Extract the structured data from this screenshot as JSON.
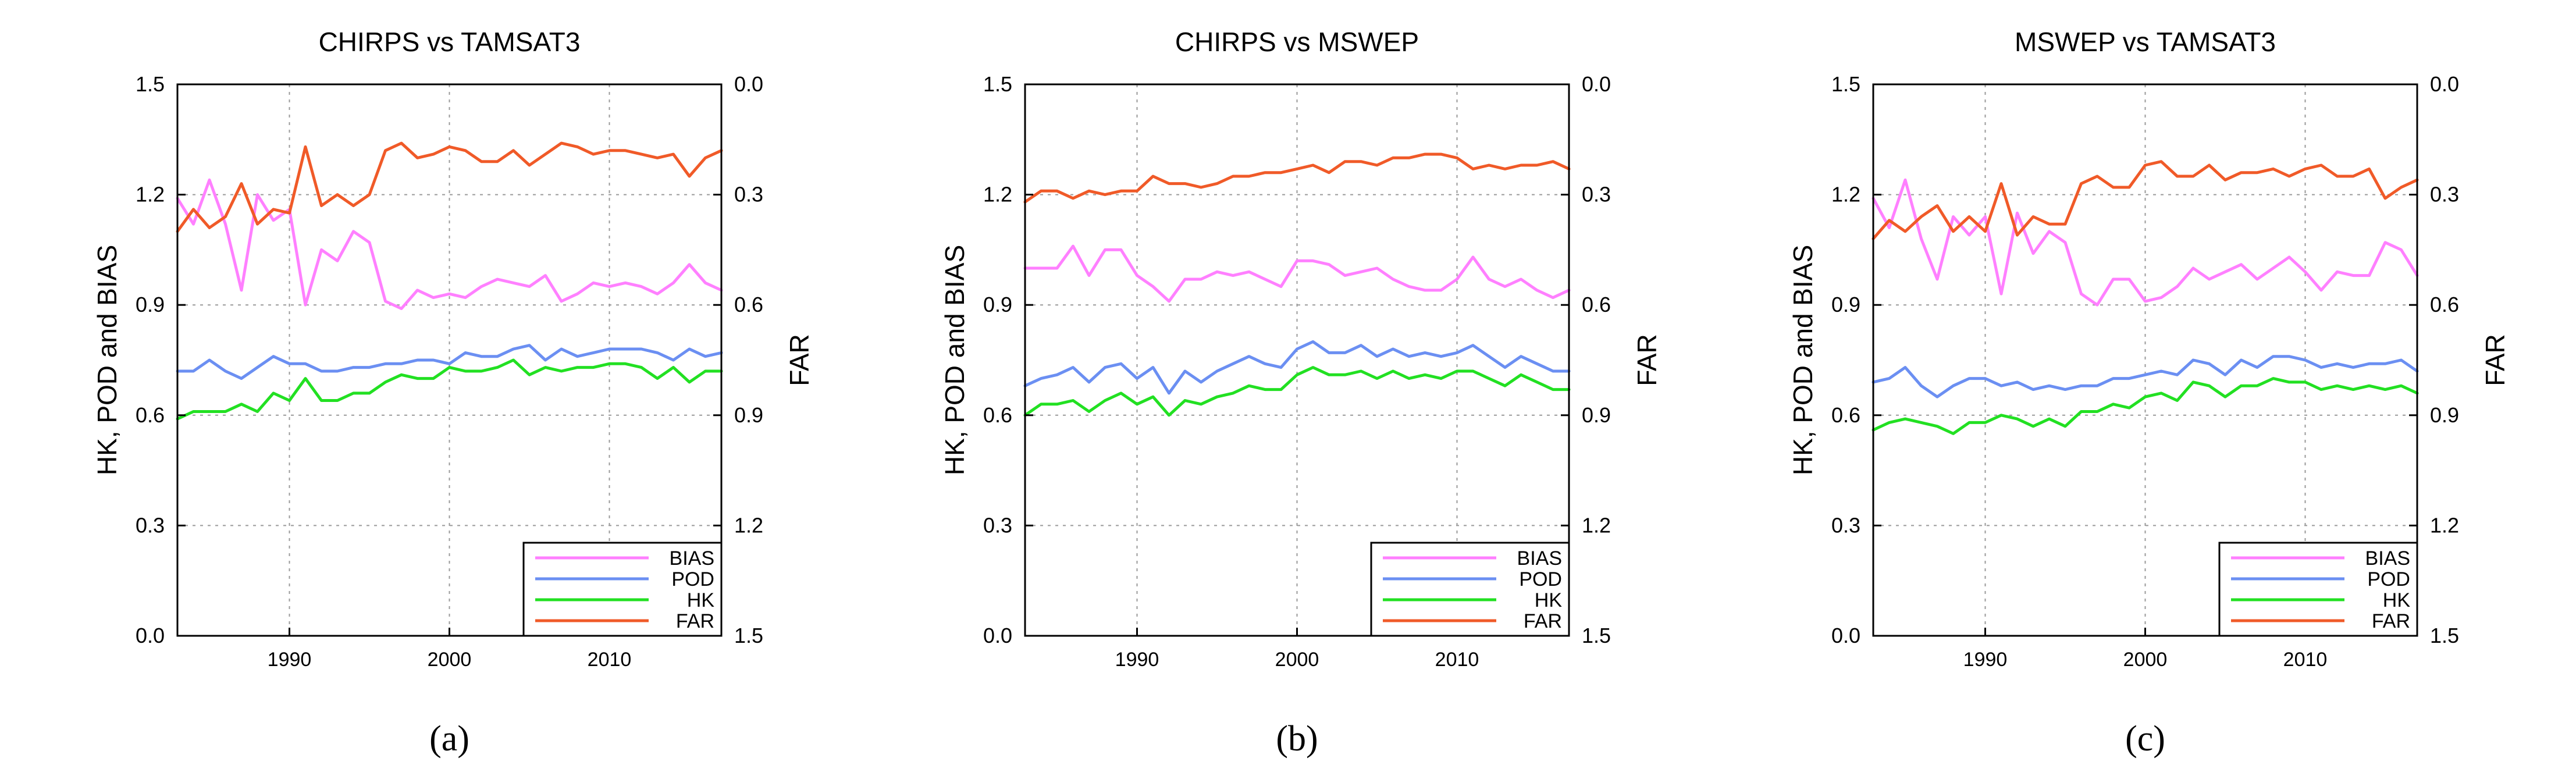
{
  "figure": {
    "panel_labels": [
      "(a)",
      "(b)",
      "(c)"
    ]
  },
  "colors": {
    "BIAS": "#ff80ff",
    "POD": "#6b8ff2",
    "HK": "#22e022",
    "FAR": "#f05a28",
    "grid": "#9a9a9a",
    "axis": "#000000"
  },
  "chart_data": [
    {
      "type": "line",
      "title": "CHIRPS vs TAMSAT3",
      "panel_label": "(a)",
      "ylabel_left": "HK, POD and BIAS",
      "ylabel_right": "FAR",
      "xlim": [
        1983,
        2017
      ],
      "ylim_left": [
        0.0,
        1.5
      ],
      "ylim_right": [
        1.5,
        0.0
      ],
      "right_axis_inverted": true,
      "xticks": [
        1990,
        2000,
        2010
      ],
      "yticks_left": [
        "0.0",
        "0.3",
        "0.6",
        "0.9",
        "1.2",
        "1.5"
      ],
      "yticks_right": [
        "1.5",
        "1.2",
        "0.9",
        "0.6",
        "0.3",
        "0.0"
      ],
      "grid": true,
      "legend_position": "bottom-right",
      "x": [
        1983,
        1984,
        1985,
        1986,
        1987,
        1988,
        1989,
        1990,
        1991,
        1992,
        1993,
        1994,
        1995,
        1996,
        1997,
        1998,
        1999,
        2000,
        2001,
        2002,
        2003,
        2004,
        2005,
        2006,
        2007,
        2008,
        2009,
        2010,
        2011,
        2012,
        2013,
        2014,
        2015,
        2016,
        2017
      ],
      "series": [
        {
          "name": "BIAS",
          "axis": "left",
          "values": [
            1.19,
            1.12,
            1.24,
            1.12,
            0.94,
            1.2,
            1.13,
            1.16,
            0.9,
            1.05,
            1.02,
            1.1,
            1.07,
            0.91,
            0.89,
            0.94,
            0.92,
            0.93,
            0.92,
            0.95,
            0.97,
            0.96,
            0.95,
            0.98,
            0.91,
            0.93,
            0.96,
            0.95,
            0.96,
            0.95,
            0.93,
            0.96,
            1.01,
            0.96,
            0.94
          ]
        },
        {
          "name": "POD",
          "axis": "left",
          "values": [
            0.72,
            0.72,
            0.75,
            0.72,
            0.7,
            0.73,
            0.76,
            0.74,
            0.74,
            0.72,
            0.72,
            0.73,
            0.73,
            0.74,
            0.74,
            0.75,
            0.75,
            0.74,
            0.77,
            0.76,
            0.76,
            0.78,
            0.79,
            0.75,
            0.78,
            0.76,
            0.77,
            0.78,
            0.78,
            0.78,
            0.77,
            0.75,
            0.78,
            0.76,
            0.77
          ]
        },
        {
          "name": "HK",
          "axis": "left",
          "values": [
            0.59,
            0.61,
            0.61,
            0.61,
            0.63,
            0.61,
            0.66,
            0.64,
            0.7,
            0.64,
            0.64,
            0.66,
            0.66,
            0.69,
            0.71,
            0.7,
            0.7,
            0.73,
            0.72,
            0.72,
            0.73,
            0.75,
            0.71,
            0.73,
            0.72,
            0.73,
            0.73,
            0.74,
            0.74,
            0.73,
            0.7,
            0.73,
            0.69,
            0.72,
            0.72
          ]
        },
        {
          "name": "FAR",
          "axis": "right",
          "values": [
            0.4,
            0.34,
            0.39,
            0.36,
            0.27,
            0.38,
            0.34,
            0.35,
            0.17,
            0.33,
            0.3,
            0.33,
            0.3,
            0.18,
            0.16,
            0.2,
            0.19,
            0.17,
            0.18,
            0.21,
            0.21,
            0.18,
            0.22,
            0.19,
            0.16,
            0.17,
            0.19,
            0.18,
            0.18,
            0.19,
            0.2,
            0.19,
            0.25,
            0.2,
            0.18
          ]
        }
      ]
    },
    {
      "type": "line",
      "title": "CHIRPS vs MSWEP",
      "panel_label": "(b)",
      "ylabel_left": "HK, POD and BIAS",
      "ylabel_right": "FAR",
      "xlim": [
        1983,
        2017
      ],
      "ylim_left": [
        0.0,
        1.5
      ],
      "ylim_right": [
        1.5,
        0.0
      ],
      "right_axis_inverted": true,
      "xticks": [
        1990,
        2000,
        2010
      ],
      "yticks_left": [
        "0.0",
        "0.3",
        "0.6",
        "0.9",
        "1.2",
        "1.5"
      ],
      "yticks_right": [
        "1.5",
        "1.2",
        "0.9",
        "0.6",
        "0.3",
        "0.0"
      ],
      "grid": true,
      "legend_position": "bottom-right",
      "x": [
        1983,
        1984,
        1985,
        1986,
        1987,
        1988,
        1989,
        1990,
        1991,
        1992,
        1993,
        1994,
        1995,
        1996,
        1997,
        1998,
        1999,
        2000,
        2001,
        2002,
        2003,
        2004,
        2005,
        2006,
        2007,
        2008,
        2009,
        2010,
        2011,
        2012,
        2013,
        2014,
        2015,
        2016,
        2017
      ],
      "series": [
        {
          "name": "BIAS",
          "axis": "left",
          "values": [
            1.0,
            1.0,
            1.0,
            1.06,
            0.98,
            1.05,
            1.05,
            0.98,
            0.95,
            0.91,
            0.97,
            0.97,
            0.99,
            0.98,
            0.99,
            0.97,
            0.95,
            1.02,
            1.02,
            1.01,
            0.98,
            0.99,
            1.0,
            0.97,
            0.95,
            0.94,
            0.94,
            0.97,
            1.03,
            0.97,
            0.95,
            0.97,
            0.94,
            0.92,
            0.94
          ]
        },
        {
          "name": "POD",
          "axis": "left",
          "values": [
            0.68,
            0.7,
            0.71,
            0.73,
            0.69,
            0.73,
            0.74,
            0.7,
            0.73,
            0.66,
            0.72,
            0.69,
            0.72,
            0.74,
            0.76,
            0.74,
            0.73,
            0.78,
            0.8,
            0.77,
            0.77,
            0.79,
            0.76,
            0.78,
            0.76,
            0.77,
            0.76,
            0.77,
            0.79,
            0.76,
            0.73,
            0.76,
            0.74,
            0.72,
            0.72
          ]
        },
        {
          "name": "HK",
          "axis": "left",
          "values": [
            0.6,
            0.63,
            0.63,
            0.64,
            0.61,
            0.64,
            0.66,
            0.63,
            0.65,
            0.6,
            0.64,
            0.63,
            0.65,
            0.66,
            0.68,
            0.67,
            0.67,
            0.71,
            0.73,
            0.71,
            0.71,
            0.72,
            0.7,
            0.72,
            0.7,
            0.71,
            0.7,
            0.72,
            0.72,
            0.7,
            0.68,
            0.71,
            0.69,
            0.67,
            0.67
          ]
        },
        {
          "name": "FAR",
          "axis": "right",
          "values": [
            0.32,
            0.29,
            0.29,
            0.31,
            0.29,
            0.3,
            0.29,
            0.29,
            0.25,
            0.27,
            0.27,
            0.28,
            0.27,
            0.25,
            0.25,
            0.24,
            0.24,
            0.23,
            0.22,
            0.24,
            0.21,
            0.21,
            0.22,
            0.2,
            0.2,
            0.19,
            0.19,
            0.2,
            0.23,
            0.22,
            0.23,
            0.22,
            0.22,
            0.21,
            0.23
          ]
        }
      ]
    },
    {
      "type": "line",
      "title": "MSWEP vs TAMSAT3",
      "panel_label": "(c)",
      "ylabel_left": "HK, POD and BIAS",
      "ylabel_right": "FAR",
      "xlim": [
        1983,
        2017
      ],
      "ylim_left": [
        0.0,
        1.5
      ],
      "ylim_right": [
        1.5,
        0.0
      ],
      "right_axis_inverted": true,
      "xticks": [
        1990,
        2000,
        2010
      ],
      "yticks_left": [
        "0.0",
        "0.3",
        "0.6",
        "0.9",
        "1.2",
        "1.5"
      ],
      "yticks_right": [
        "1.5",
        "1.2",
        "0.9",
        "0.6",
        "0.3",
        "0.0"
      ],
      "grid": true,
      "legend_position": "bottom-right",
      "x": [
        1983,
        1984,
        1985,
        1986,
        1987,
        1988,
        1989,
        1990,
        1991,
        1992,
        1993,
        1994,
        1995,
        1996,
        1997,
        1998,
        1999,
        2000,
        2001,
        2002,
        2003,
        2004,
        2005,
        2006,
        2007,
        2008,
        2009,
        2010,
        2011,
        2012,
        2013,
        2014,
        2015,
        2016,
        2017
      ],
      "series": [
        {
          "name": "BIAS",
          "axis": "left",
          "values": [
            1.19,
            1.11,
            1.24,
            1.08,
            0.97,
            1.14,
            1.09,
            1.14,
            0.93,
            1.15,
            1.04,
            1.1,
            1.07,
            0.93,
            0.9,
            0.97,
            0.97,
            0.91,
            0.92,
            0.95,
            1.0,
            0.97,
            0.99,
            1.01,
            0.97,
            1.0,
            1.03,
            0.99,
            0.94,
            0.99,
            0.98,
            0.98,
            1.07,
            1.05,
            0.98
          ]
        },
        {
          "name": "POD",
          "axis": "left",
          "values": [
            0.69,
            0.7,
            0.73,
            0.68,
            0.65,
            0.68,
            0.7,
            0.7,
            0.68,
            0.69,
            0.67,
            0.68,
            0.67,
            0.68,
            0.68,
            0.7,
            0.7,
            0.71,
            0.72,
            0.71,
            0.75,
            0.74,
            0.71,
            0.75,
            0.73,
            0.76,
            0.76,
            0.75,
            0.73,
            0.74,
            0.73,
            0.74,
            0.74,
            0.75,
            0.72
          ]
        },
        {
          "name": "HK",
          "axis": "left",
          "values": [
            0.56,
            0.58,
            0.59,
            0.58,
            0.57,
            0.55,
            0.58,
            0.58,
            0.6,
            0.59,
            0.57,
            0.59,
            0.57,
            0.61,
            0.61,
            0.63,
            0.62,
            0.65,
            0.66,
            0.64,
            0.69,
            0.68,
            0.65,
            0.68,
            0.68,
            0.7,
            0.69,
            0.69,
            0.67,
            0.68,
            0.67,
            0.68,
            0.67,
            0.68,
            0.66
          ]
        },
        {
          "name": "FAR",
          "axis": "right",
          "values": [
            0.42,
            0.37,
            0.4,
            0.36,
            0.33,
            0.4,
            0.36,
            0.4,
            0.27,
            0.41,
            0.36,
            0.38,
            0.38,
            0.27,
            0.25,
            0.28,
            0.28,
            0.22,
            0.21,
            0.25,
            0.25,
            0.22,
            0.26,
            0.24,
            0.24,
            0.23,
            0.25,
            0.23,
            0.22,
            0.25,
            0.25,
            0.23,
            0.31,
            0.28,
            0.26
          ]
        }
      ]
    }
  ]
}
